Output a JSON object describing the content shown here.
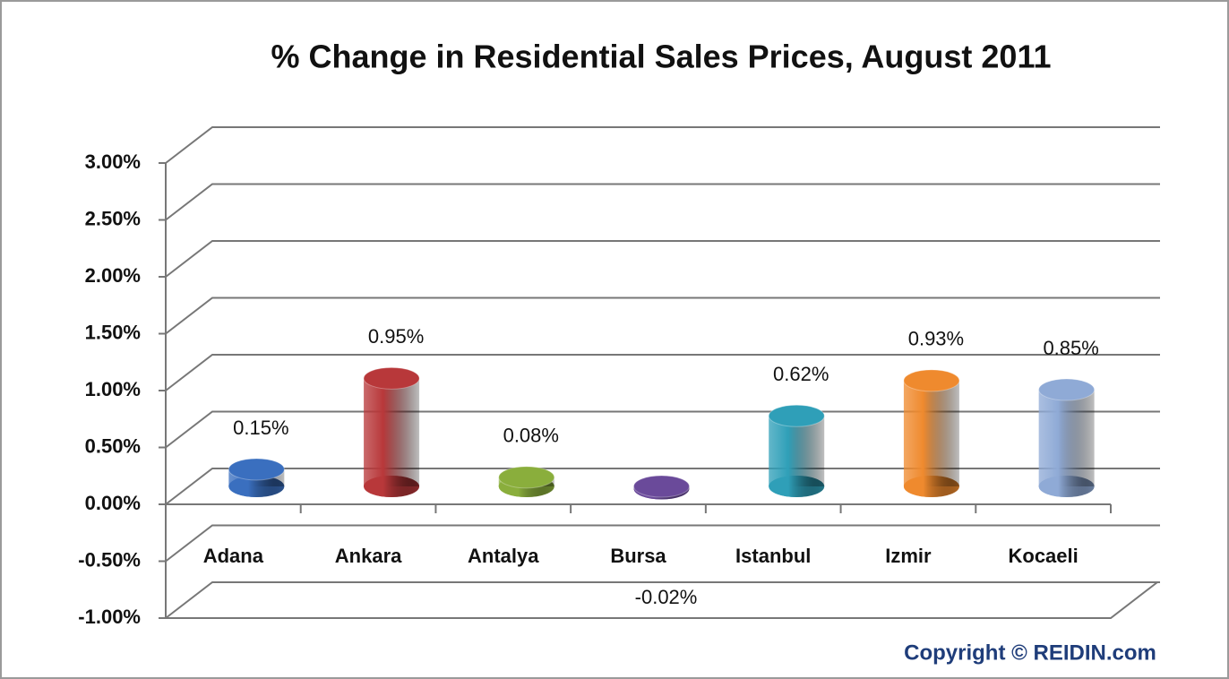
{
  "chart_data": {
    "type": "bar",
    "title": "% Change in Residential Sales Prices, August 2011",
    "categories": [
      "Adana",
      "Ankara",
      "Antalya",
      "Bursa",
      "Istanbul",
      "Izmir",
      "Kocaeli"
    ],
    "values": [
      0.15,
      0.95,
      0.08,
      -0.02,
      0.62,
      0.93,
      0.85
    ],
    "value_labels": [
      "0.15%",
      "0.95%",
      "0.08%",
      "-0.02%",
      "0.62%",
      "0.93%",
      "0.85%"
    ],
    "colors": [
      "#3a6fbf",
      "#b8383a",
      "#8aae3c",
      "#6a4a9a",
      "#2f9fb8",
      "#ef8a2e",
      "#8faad6"
    ],
    "ylim": [
      -1,
      3
    ],
    "yticks": [
      {
        "value": -1,
        "label": "-1.00%"
      },
      {
        "value": -0.5,
        "label": "-0.50%"
      },
      {
        "value": 0,
        "label": "0.00%"
      },
      {
        "value": 0.5,
        "label": "0.50%"
      },
      {
        "value": 1,
        "label": "1.00%"
      },
      {
        "value": 1.5,
        "label": "1.50%"
      },
      {
        "value": 2,
        "label": "2.00%"
      },
      {
        "value": 2.5,
        "label": "2.50%"
      },
      {
        "value": 3,
        "label": "3.00%"
      }
    ],
    "grid": true,
    "annotation": "Copyright © REIDIN.com"
  }
}
